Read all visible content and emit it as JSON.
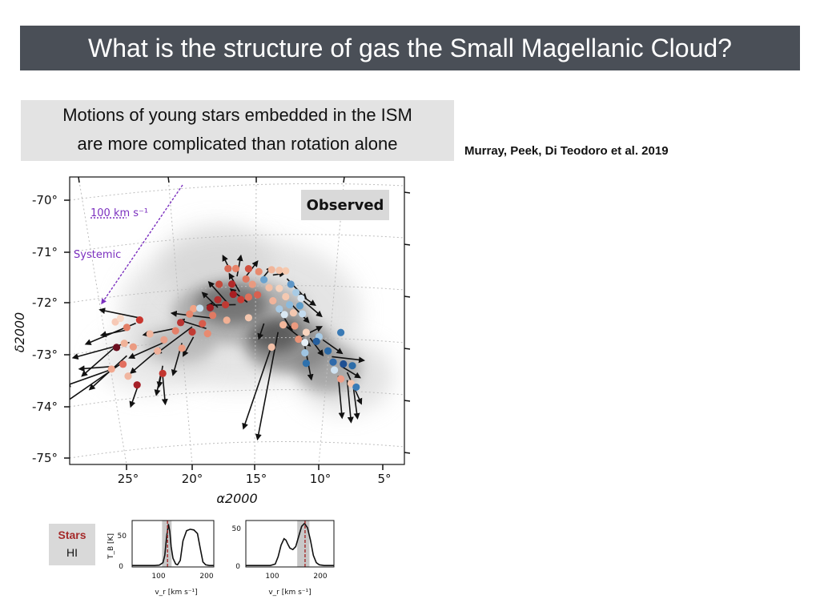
{
  "header": {
    "title": "What is the structure of gas the Small Magellanic Cloud?"
  },
  "caption": {
    "line1": "Motions of young stars embedded in the ISM",
    "line2": "are more complicated than rotation alone"
  },
  "reference": "Murray, Peek, Di Teodoro et al. 2019",
  "legend": {
    "stars_label": "Stars",
    "hi_label": "HI",
    "stars_color": "#a52a2a"
  },
  "colors": {
    "title_bar": "#4a4f57",
    "vector_color": "#7b2fbf"
  },
  "chart_data": [
    {
      "type": "scatter",
      "panel": "Observed",
      "xlabel": "α2000",
      "ylabel": "δ2000",
      "x_tick_labels": [
        "25°",
        "20°",
        "15°",
        "10°",
        "5°"
      ],
      "y_tick_labels": [
        "-70°",
        "-71°",
        "-72°",
        "-73°",
        "-74°",
        "-75°"
      ],
      "grid": true,
      "annotations": {
        "scale_label": "100 km s⁻¹",
        "systemic_label": "Systemic"
      },
      "points": [
        {
          "x": 17.2,
          "y": -71.8,
          "c": "#d96a55"
        },
        {
          "x": 16.6,
          "y": -71.8,
          "c": "#e8846a"
        },
        {
          "x": 15.6,
          "y": -71.8,
          "c": "#d05040"
        },
        {
          "x": 14.8,
          "y": -71.85,
          "c": "#e88a6e"
        },
        {
          "x": 13.8,
          "y": -71.8,
          "c": "#f1b59a"
        },
        {
          "x": 13.2,
          "y": -71.8,
          "c": "#f4c2a8"
        },
        {
          "x": 12.7,
          "y": -71.8,
          "c": "#f6cab0"
        },
        {
          "x": 14.4,
          "y": -72.0,
          "c": "#6ba3cf"
        },
        {
          "x": 12.3,
          "y": -72.05,
          "c": "#5e96c7"
        },
        {
          "x": 17.9,
          "y": -72.1,
          "c": "#c44a3c"
        },
        {
          "x": 16.9,
          "y": -72.1,
          "c": "#b22a2a"
        },
        {
          "x": 15.8,
          "y": -72.0,
          "c": "#e07860"
        },
        {
          "x": 15.3,
          "y": -72.1,
          "c": "#e89a80"
        },
        {
          "x": 14.0,
          "y": -72.15,
          "c": "#f3bfa5"
        },
        {
          "x": 13.2,
          "y": -72.15,
          "c": "#f6d2bc"
        },
        {
          "x": 11.9,
          "y": -72.2,
          "c": "#a8cbe5"
        },
        {
          "x": 11.5,
          "y": -72.3,
          "c": "#d8e6f2"
        },
        {
          "x": 18.0,
          "y": -72.4,
          "c": "#b33030"
        },
        {
          "x": 16.8,
          "y": -72.3,
          "c": "#a81e22"
        },
        {
          "x": 16.2,
          "y": -72.4,
          "c": "#c83c35"
        },
        {
          "x": 15.6,
          "y": -72.35,
          "c": "#e0705a"
        },
        {
          "x": 14.9,
          "y": -72.3,
          "c": "#d86050"
        },
        {
          "x": 13.7,
          "y": -72.4,
          "c": "#f1b39a"
        },
        {
          "x": 12.7,
          "y": -72.3,
          "c": "#f4c9b1"
        },
        {
          "x": 12.4,
          "y": -72.45,
          "c": "#8cbadc"
        },
        {
          "x": 11.6,
          "y": -72.45,
          "c": "#5d9cc9"
        },
        {
          "x": 18.6,
          "y": -72.55,
          "c": "#9e1b20"
        },
        {
          "x": 17.4,
          "y": -72.5,
          "c": "#bf3a33"
        },
        {
          "x": 19.9,
          "y": -72.55,
          "c": "#f1a486"
        },
        {
          "x": 19.4,
          "y": -72.55,
          "c": "#c8e0f0"
        },
        {
          "x": 13.2,
          "y": -72.55,
          "c": "#a7c9e4"
        },
        {
          "x": 12.8,
          "y": -72.65,
          "c": "#d9e8f3"
        },
        {
          "x": 12.1,
          "y": -72.6,
          "c": "#f5c8b0"
        },
        {
          "x": 11.4,
          "y": -72.6,
          "c": "#c4dbee"
        },
        {
          "x": 20.2,
          "y": -72.65,
          "c": "#e8866c"
        },
        {
          "x": 18.4,
          "y": -72.7,
          "c": "#e07a63"
        },
        {
          "x": 20.9,
          "y": -72.8,
          "c": "#b93432"
        },
        {
          "x": 19.2,
          "y": -72.85,
          "c": "#d85c4c"
        },
        {
          "x": 17.3,
          "y": -72.8,
          "c": "#f1b094"
        },
        {
          "x": 15.6,
          "y": -72.75,
          "c": "#f3c6ae"
        },
        {
          "x": 12.9,
          "y": -72.85,
          "c": "#f2b79c"
        },
        {
          "x": 12.0,
          "y": -72.85,
          "c": "#ec9a7f"
        },
        {
          "x": 11.1,
          "y": -72.95,
          "c": "#f8d5c0"
        },
        {
          "x": 11.7,
          "y": -73.1,
          "c": "#e99377"
        },
        {
          "x": 10.1,
          "y": -73.0,
          "c": "#a9cbe5"
        },
        {
          "x": 8.4,
          "y": -72.85,
          "c": "#3a7ab5"
        },
        {
          "x": 21.3,
          "y": -72.95,
          "c": "#e48069"
        },
        {
          "x": 20.0,
          "y": -73.0,
          "c": "#c13b34"
        },
        {
          "x": 22.2,
          "y": -73.1,
          "c": "#eaa08a"
        },
        {
          "x": 18.8,
          "y": -73.05,
          "c": "#e88b71"
        },
        {
          "x": 11.2,
          "y": -73.15,
          "c": "#e6eff7"
        },
        {
          "x": 10.3,
          "y": -73.1,
          "c": "#255f9e"
        },
        {
          "x": 9.4,
          "y": -73.25,
          "c": "#2a69a6"
        },
        {
          "x": 22.7,
          "y": -73.3,
          "c": "#f0b09a"
        },
        {
          "x": 20.8,
          "y": -73.3,
          "c": "#ed9c82"
        },
        {
          "x": 13.8,
          "y": -73.3,
          "c": "#f2c0a8"
        },
        {
          "x": 11.2,
          "y": -73.35,
          "c": "#9ec4e2"
        },
        {
          "x": 9.0,
          "y": -73.45,
          "c": "#2f6aaa"
        },
        {
          "x": 8.2,
          "y": -73.45,
          "c": "#1e4f92"
        },
        {
          "x": 8.9,
          "y": -73.6,
          "c": "#cfe1f0"
        },
        {
          "x": 7.5,
          "y": -73.45,
          "c": "#2c6ca8"
        },
        {
          "x": 25.3,
          "y": -73.05,
          "c": "#f0b298"
        },
        {
          "x": 25.9,
          "y": -73.1,
          "c": "#6a0d1e"
        },
        {
          "x": 25.1,
          "y": -72.75,
          "c": "#e27e66"
        },
        {
          "x": 26.0,
          "y": -72.6,
          "c": "#f7c9b6"
        },
        {
          "x": 25.4,
          "y": -73.45,
          "c": "#e26e5e"
        },
        {
          "x": 26.3,
          "y": -73.5,
          "c": "#f2a88f"
        },
        {
          "x": 25.0,
          "y": -73.7,
          "c": "#f1b6a0"
        },
        {
          "x": 24.1,
          "y": -72.65,
          "c": "#c9362f"
        },
        {
          "x": 25.6,
          "y": -72.55,
          "c": "#f8d8c6"
        },
        {
          "x": 24.6,
          "y": -73.15,
          "c": "#eb9b82"
        },
        {
          "x": 24.3,
          "y": -73.9,
          "c": "#a51f27"
        },
        {
          "x": 23.3,
          "y": -72.95,
          "c": "#f1b59d"
        },
        {
          "x": 22.3,
          "y": -73.75,
          "c": "#c2352f"
        },
        {
          "x": 8.4,
          "y": -73.75,
          "c": "#ee9c86"
        },
        {
          "x": 7.6,
          "y": -73.8,
          "c": "#f2c3ad"
        },
        {
          "x": 7.2,
          "y": -73.85,
          "c": "#3a7bb6"
        },
        {
          "x": 11.1,
          "y": -73.55,
          "c": "#2e71ad"
        }
      ],
      "vectors": [
        {
          "x1": 17.0,
          "y1": -71.85,
          "x2": 17.6,
          "y2": -71.55
        },
        {
          "x1": 16.5,
          "y1": -71.95,
          "x2": 16.2,
          "y2": -71.55
        },
        {
          "x1": 15.8,
          "y1": -71.95,
          "x2": 14.9,
          "y2": -71.65
        },
        {
          "x1": 14.6,
          "y1": -72.0,
          "x2": 13.8,
          "y2": -71.75
        },
        {
          "x1": 13.7,
          "y1": -71.9,
          "x2": 12.8,
          "y2": -71.85
        },
        {
          "x1": 12.6,
          "y1": -71.95,
          "x2": 11.1,
          "y2": -72.3
        },
        {
          "x1": 11.8,
          "y1": -72.2,
          "x2": 10.4,
          "y2": -72.4
        },
        {
          "x1": 11.3,
          "y1": -72.35,
          "x2": 9.9,
          "y2": -72.6
        },
        {
          "x1": 12.2,
          "y1": -72.45,
          "x2": 10.9,
          "y2": -72.75
        },
        {
          "x1": 13.1,
          "y1": -72.6,
          "x2": 12.2,
          "y2": -72.95
        },
        {
          "x1": 12.8,
          "y1": -72.85,
          "x2": 10.8,
          "y2": -73.2
        },
        {
          "x1": 11.5,
          "y1": -73.05,
          "x2": 9.9,
          "y2": -72.8
        },
        {
          "x1": 10.8,
          "y1": -73.05,
          "x2": 9.8,
          "y2": -73.35
        },
        {
          "x1": 9.8,
          "y1": -73.05,
          "x2": 8.3,
          "y2": -73.25
        },
        {
          "x1": 9.1,
          "y1": -73.35,
          "x2": 6.6,
          "y2": -73.3
        },
        {
          "x1": 8.4,
          "y1": -73.5,
          "x2": 6.9,
          "y2": -73.65
        },
        {
          "x1": 7.9,
          "y1": -73.6,
          "x2": 6.8,
          "y2": -74.15
        },
        {
          "x1": 8.6,
          "y1": -73.7,
          "x2": 8.3,
          "y2": -74.5
        },
        {
          "x1": 7.9,
          "y1": -73.75,
          "x2": 7.6,
          "y2": -74.55
        },
        {
          "x1": 7.4,
          "y1": -73.9,
          "x2": 7.1,
          "y2": -74.45
        },
        {
          "x1": 14.4,
          "y1": -72.85,
          "x2": 14.8,
          "y2": -73.15
        },
        {
          "x1": 13.3,
          "y1": -73.0,
          "x2": 14.9,
          "y2": -75.1
        },
        {
          "x1": 13.9,
          "y1": -73.35,
          "x2": 16.0,
          "y2": -74.9
        },
        {
          "x1": 11.3,
          "y1": -73.1,
          "x2": 10.7,
          "y2": -73.85
        },
        {
          "x1": 18.0,
          "y1": -72.55,
          "x2": 19.2,
          "y2": -72.25
        },
        {
          "x1": 18.5,
          "y1": -72.75,
          "x2": 21.6,
          "y2": -72.6
        },
        {
          "x1": 17.3,
          "y1": -72.45,
          "x2": 18.7,
          "y2": -72.05
        },
        {
          "x1": 16.6,
          "y1": -72.5,
          "x2": 18.8,
          "y2": -72.5
        },
        {
          "x1": 15.7,
          "y1": -72.45,
          "x2": 17.0,
          "y2": -72.2
        },
        {
          "x1": 16.3,
          "y1": -72.25,
          "x2": 17.1,
          "y2": -71.9
        },
        {
          "x1": 18.9,
          "y1": -72.95,
          "x2": 21.0,
          "y2": -72.75
        },
        {
          "x1": 20.0,
          "y1": -72.9,
          "x2": 22.8,
          "y2": -73.35
        },
        {
          "x1": 20.8,
          "y1": -73.2,
          "x2": 21.5,
          "y2": -73.8
        },
        {
          "x1": 19.9,
          "y1": -73.1,
          "x2": 20.7,
          "y2": -73.45
        },
        {
          "x1": 21.2,
          "y1": -72.9,
          "x2": 23.8,
          "y2": -72.95
        },
        {
          "x1": 22.2,
          "y1": -73.15,
          "x2": 24.9,
          "y2": -73.35
        },
        {
          "x1": 22.5,
          "y1": -73.25,
          "x2": 24.8,
          "y2": -73.65
        },
        {
          "x1": 22.3,
          "y1": -73.6,
          "x2": 22.6,
          "y2": -74.0
        },
        {
          "x1": 22.4,
          "y1": -73.7,
          "x2": 22.8,
          "y2": -74.15
        },
        {
          "x1": 22.3,
          "y1": -73.8,
          "x2": 22.1,
          "y2": -74.35
        },
        {
          "x1": 24.2,
          "y1": -73.9,
          "x2": 24.8,
          "y2": -74.3
        },
        {
          "x1": 24.2,
          "y1": -72.6,
          "x2": 27.2,
          "y2": -72.3
        },
        {
          "x1": 24.4,
          "y1": -72.7,
          "x2": 28.3,
          "y2": -72.9
        },
        {
          "x1": 25.8,
          "y1": -73.05,
          "x2": 28.6,
          "y2": -73.5
        },
        {
          "x1": 25.1,
          "y1": -73.3,
          "x2": 28.0,
          "y2": -73.8
        },
        {
          "x1": 25.3,
          "y1": -73.4,
          "x2": 30.2,
          "y2": -73.95
        },
        {
          "x1": 26.1,
          "y1": -73.5,
          "x2": 29.9,
          "y2": -73.6
        },
        {
          "x1": 26.3,
          "y1": -73.45,
          "x2": 28.8,
          "y2": -73.35
        },
        {
          "x1": 24.9,
          "y1": -73.05,
          "x2": 29.3,
          "y2": -73.1
        },
        {
          "x1": 25.2,
          "y1": -72.8,
          "x2": 27.1,
          "y2": -72.8
        }
      ]
    },
    {
      "type": "line",
      "panel": "spectrum-left",
      "xlabel": "v_r [km s⁻¹]",
      "ylabel": "T_B [K]",
      "x_tick_labels": [
        "100",
        "200"
      ],
      "y_tick_labels": [
        "0",
        "50"
      ],
      "xlim": [
        50,
        230
      ],
      "ylim": [
        -2,
        62
      ],
      "series": [
        {
          "x": [
            50,
            80,
            100,
            110,
            118,
            122,
            126,
            130,
            133,
            136,
            140,
            146,
            150,
            156,
            162,
            170,
            178,
            186,
            194,
            200,
            206,
            212,
            220,
            230
          ],
          "values": [
            0,
            0,
            0,
            0.5,
            4,
            14,
            40,
            57,
            47,
            26,
            10,
            2,
            1,
            7,
            34,
            48,
            50,
            49,
            44,
            24,
            5,
            1,
            0,
            0
          ]
        }
      ],
      "highlight_band": [
        116,
        137
      ],
      "marker_x": 128
    },
    {
      "type": "line",
      "panel": "spectrum-right",
      "xlabel": "v_r [km s⁻¹]",
      "x_tick_labels": [
        "100",
        "200"
      ],
      "y_tick_labels": [
        "0",
        "50"
      ],
      "xlim": [
        50,
        230
      ],
      "ylim": [
        -2,
        62
      ],
      "series": [
        {
          "x": [
            50,
            80,
            100,
            110,
            116,
            122,
            128,
            132,
            136,
            140,
            146,
            152,
            158,
            164,
            170,
            176,
            182,
            188,
            194,
            200,
            210,
            220,
            230
          ],
          "values": [
            0,
            0,
            0,
            2,
            12,
            28,
            37,
            35,
            29,
            24,
            22,
            26,
            40,
            54,
            58,
            52,
            35,
            14,
            4,
            1,
            0,
            0,
            0
          ]
        }
      ],
      "highlight_band": [
        155,
        180
      ],
      "marker_x": 171
    }
  ]
}
